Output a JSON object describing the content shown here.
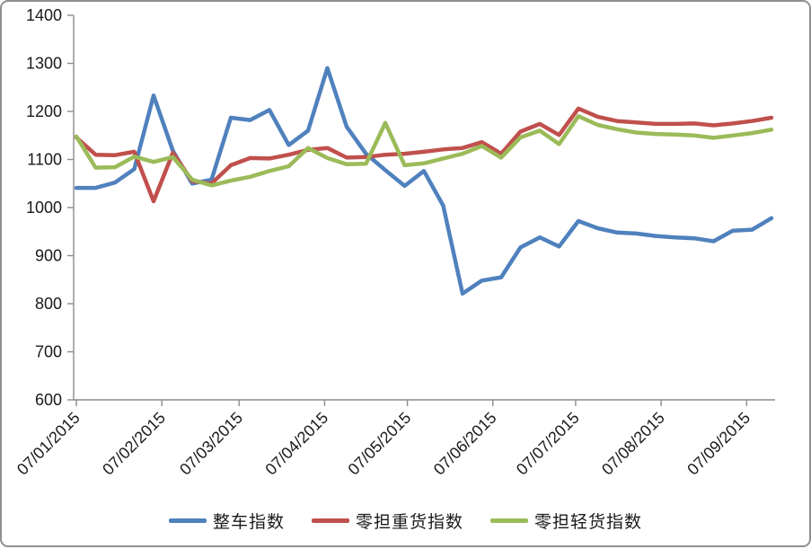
{
  "frame": {
    "background": "#FFFFFF",
    "border_color": "#8F8F8F",
    "axis_color": "#8C8C8C",
    "label_color": "#1a1a1a"
  },
  "legend": {
    "items": [
      {
        "label": "整车指数",
        "color": "#4F81BD"
      },
      {
        "label": "零担重货指数",
        "color": "#C0504D"
      },
      {
        "label": "零担轻货指数",
        "color": "#9BBB59"
      }
    ]
  },
  "chart_data": {
    "type": "line",
    "title": "",
    "grid": false,
    "legend_position": "bottom",
    "y_axis": {
      "min": 600,
      "max": 1400,
      "step": 100,
      "tick_labels": [
        "600",
        "700",
        "800",
        "900",
        "1000",
        "1100",
        "1200",
        "1300",
        "1400"
      ]
    },
    "x_axis": {
      "tick_labels": [
        "07/01/2015",
        "07/02/2015",
        "07/03/2015",
        "07/04/2015",
        "07/05/2015",
        "07/06/2015",
        "07/07/2015",
        "07/08/2015",
        "07/09/2015"
      ],
      "tick_day_offsets": [
        0,
        31,
        59,
        90,
        120,
        151,
        181,
        212,
        243
      ],
      "points_day_interval": 7,
      "n_points": 37
    },
    "series": [
      {
        "name": "整车指数",
        "color": "#4F81BD",
        "values": [
          1041,
          1041,
          1052,
          1080,
          1233,
          1118,
          1050,
          1058,
          1187,
          1182,
          1203,
          1130,
          1160,
          1290,
          1168,
          1112,
          1078,
          1045,
          1076,
          1004,
          821,
          848,
          855,
          917,
          938,
          919,
          972,
          957,
          948,
          946,
          941,
          938,
          936,
          930,
          952,
          954,
          978
        ]
      },
      {
        "name": "零担重货指数",
        "color": "#C0504D",
        "values": [
          1146,
          1110,
          1109,
          1116,
          1013,
          1114,
          1055,
          1050,
          1088,
          1103,
          1102,
          1110,
          1120,
          1124,
          1104,
          1105,
          1110,
          1112,
          1116,
          1121,
          1124,
          1136,
          1112,
          1158,
          1174,
          1151,
          1206,
          1189,
          1180,
          1177,
          1174,
          1174,
          1175,
          1171,
          1175,
          1180,
          1187
        ]
      },
      {
        "name": "零担轻货指数",
        "color": "#9BBB59",
        "values": [
          1148,
          1083,
          1084,
          1106,
          1095,
          1105,
          1058,
          1046,
          1056,
          1064,
          1076,
          1086,
          1124,
          1103,
          1090,
          1091,
          1176,
          1088,
          1092,
          1102,
          1112,
          1128,
          1104,
          1146,
          1160,
          1132,
          1190,
          1172,
          1163,
          1156,
          1153,
          1152,
          1150,
          1145,
          1150,
          1155,
          1162
        ]
      }
    ]
  }
}
